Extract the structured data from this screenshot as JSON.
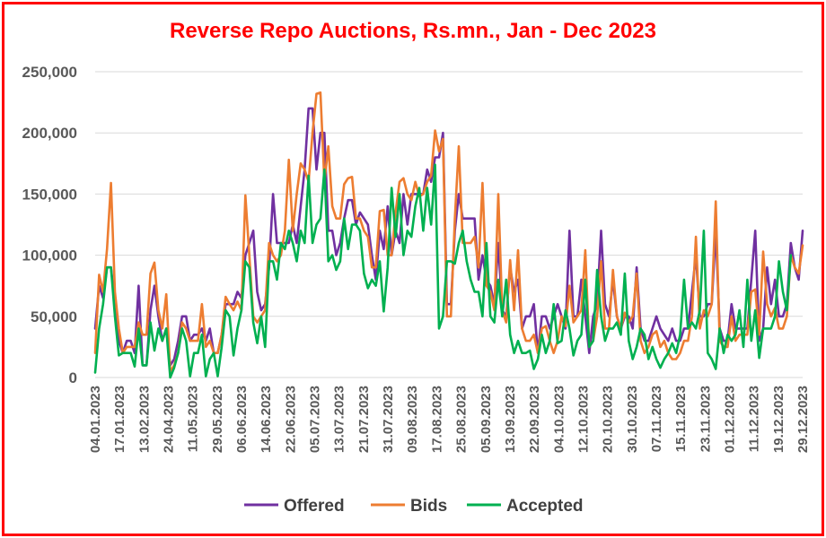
{
  "chart_data": {
    "type": "line",
    "title": "Reverse Repo Auctions, Rs.mn., Jan - Dec 2023",
    "xlabel": "",
    "ylabel": "",
    "ylim": [
      0,
      250000
    ],
    "yticks": [
      0,
      50000,
      100000,
      150000,
      200000,
      250000
    ],
    "ytick_labels": [
      "0",
      "50,000",
      "100,000",
      "150,000",
      "200,000",
      "250,000"
    ],
    "xtick_labels": [
      "04.01.2023",
      "17.01.2023",
      "13.02.2023",
      "24.04.2023",
      "11.05.2023",
      "29.05.2023",
      "06.06.2023",
      "14.06.2023",
      "22.06.2023",
      "05.07.2023",
      "13.07.2023",
      "21.07.2023",
      "31.07.2023",
      "09.08.2023",
      "17.08.2023",
      "25.08.2023",
      "05.09.2023",
      "13.09.2023",
      "22.09.2023",
      "04.10.2023",
      "12.10.2023",
      "20.10.2023",
      "30.10.2023",
      "07.11.2023",
      "15.11.2023",
      "23.11.2023",
      "01.12.2023",
      "11.12.2023",
      "19.12.2023",
      "29.12.2023"
    ],
    "legend": "bottom",
    "grid": true,
    "series": [
      {
        "name": "Offered",
        "color": "#7030a0",
        "values": [
          40000,
          75000,
          65000,
          90000,
          90000,
          60000,
          30000,
          20000,
          30000,
          30000,
          20000,
          75000,
          10000,
          10000,
          55000,
          75000,
          50000,
          30000,
          40000,
          10000,
          15000,
          30000,
          50000,
          50000,
          30000,
          35000,
          35000,
          40000,
          30000,
          40000,
          20000,
          20000,
          35000,
          60000,
          60000,
          60000,
          70000,
          65000,
          100000,
          110000,
          120000,
          70000,
          55000,
          60000,
          90000,
          150000,
          110000,
          110000,
          110000,
          110000,
          125000,
          110000,
          140000,
          170000,
          220000,
          220000,
          170000,
          200000,
          200000,
          120000,
          120000,
          100000,
          110000,
          130000,
          145000,
          145000,
          125000,
          135000,
          130000,
          125000,
          100000,
          80000,
          120000,
          105000,
          140000,
          100000,
          120000,
          110000,
          150000,
          125000,
          150000,
          150000,
          150000,
          150000,
          170000,
          160000,
          180000,
          180000,
          200000,
          60000,
          60000,
          120000,
          150000,
          130000,
          130000,
          130000,
          130000,
          80000,
          100000,
          80000,
          75000,
          60000,
          110000,
          55000,
          50000,
          90000,
          70000,
          80000,
          40000,
          50000,
          50000,
          60000,
          20000,
          50000,
          50000,
          40000,
          50000,
          60000,
          50000,
          40000,
          120000,
          50000,
          50000,
          80000,
          50000,
          20000,
          50000,
          60000,
          120000,
          60000,
          50000,
          80000,
          50000,
          40000,
          50000,
          50000,
          40000,
          90000,
          40000,
          30000,
          30000,
          40000,
          50000,
          40000,
          35000,
          30000,
          40000,
          30000,
          30000,
          40000,
          40000,
          70000,
          100000,
          50000,
          50000,
          60000,
          60000,
          120000,
          40000,
          30000,
          30000,
          60000,
          40000,
          40000,
          40000,
          40000,
          80000,
          120000,
          30000,
          40000,
          90000,
          60000,
          80000,
          50000,
          50000,
          60000,
          110000,
          90000,
          80000,
          120000
        ]
      },
      {
        "name": "Bids",
        "color": "#ed7d31",
        "values": [
          20000,
          84000,
          70000,
          105000,
          159000,
          70000,
          40000,
          20000,
          25000,
          25000,
          25000,
          45000,
          35000,
          35000,
          85000,
          94000,
          55000,
          40000,
          68000,
          5000,
          10000,
          20000,
          45000,
          40000,
          30000,
          30000,
          30000,
          60000,
          25000,
          30000,
          20000,
          20000,
          35000,
          66000,
          60000,
          55000,
          62000,
          55000,
          149000,
          100000,
          50000,
          45000,
          50000,
          55000,
          110000,
          100000,
          95000,
          100000,
          120000,
          178000,
          120000,
          150000,
          175000,
          170000,
          160000,
          200000,
          232000,
          233000,
          160000,
          189000,
          140000,
          130000,
          130000,
          158000,
          163000,
          164000,
          130000,
          130000,
          120000,
          115000,
          90000,
          90000,
          136000,
          137000,
          100000,
          100000,
          135000,
          160000,
          163000,
          150000,
          145000,
          160000,
          148000,
          150000,
          160000,
          165000,
          202000,
          185000,
          195000,
          50000,
          50000,
          130000,
          189000,
          110000,
          110000,
          110000,
          115000,
          90000,
          159000,
          75000,
          70000,
          55000,
          150000,
          55000,
          45000,
          96000,
          55000,
          104000,
          40000,
          30000,
          30000,
          35000,
          20000,
          40000,
          42000,
          30000,
          20000,
          30000,
          50000,
          42000,
          75000,
          45000,
          50000,
          55000,
          104000,
          25000,
          30000,
          50000,
          95000,
          40000,
          40000,
          88000,
          50000,
          40000,
          53000,
          45000,
          50000,
          85000,
          30000,
          20000,
          25000,
          35000,
          38000,
          25000,
          30000,
          20000,
          15000,
          15000,
          20000,
          30000,
          30000,
          50000,
          115000,
          40000,
          55000,
          50000,
          60000,
          144000,
          30000,
          25000,
          25000,
          50000,
          30000,
          35000,
          35000,
          35000,
          70000,
          72000,
          35000,
          103000,
          60000,
          50000,
          57000,
          40000,
          40000,
          50000,
          100000,
          90000,
          85000,
          108000
        ]
      },
      {
        "name": "Accepted",
        "color": "#00b050",
        "values": [
          4000,
          40000,
          60000,
          90000,
          90000,
          50000,
          18000,
          20000,
          20000,
          20000,
          9000,
          40000,
          10000,
          10000,
          45000,
          22000,
          40000,
          30000,
          40000,
          0,
          8000,
          20000,
          40000,
          30000,
          1000,
          20000,
          20000,
          35000,
          1000,
          15000,
          20000,
          1000,
          25000,
          55000,
          50000,
          18000,
          40000,
          55000,
          95000,
          90000,
          45000,
          28000,
          50000,
          25000,
          95000,
          95000,
          80000,
          110000,
          105000,
          120000,
          110000,
          95000,
          120000,
          110000,
          165000,
          110000,
          125000,
          130000,
          170000,
          95000,
          100000,
          88000,
          95000,
          130000,
          105000,
          125000,
          125000,
          120000,
          85000,
          73000,
          80000,
          75000,
          95000,
          54000,
          90000,
          155000,
          115000,
          150000,
          100000,
          120000,
          115000,
          140000,
          155000,
          120000,
          155000,
          125000,
          174000,
          40000,
          50000,
          95000,
          95000,
          93000,
          110000,
          120000,
          95000,
          80000,
          70000,
          70000,
          50000,
          110000,
          50000,
          45000,
          80000,
          50000,
          80000,
          35000,
          20000,
          30000,
          20000,
          20000,
          22000,
          7000,
          15000,
          35000,
          20000,
          30000,
          60000,
          28000,
          30000,
          55000,
          40000,
          18000,
          30000,
          35000,
          80000,
          25000,
          30000,
          88000,
          50000,
          30000,
          40000,
          40000,
          45000,
          35000,
          85000,
          30000,
          15000,
          25000,
          40000,
          35000,
          15000,
          25000,
          15000,
          8000,
          15000,
          20000,
          28000,
          20000,
          35000,
          80000,
          40000,
          45000,
          40000,
          55000,
          120000,
          20000,
          15000,
          7000,
          40000,
          20000,
          35000,
          30000,
          35000,
          55000,
          25000,
          80000,
          30000,
          55000,
          16000,
          40000,
          40000,
          40000,
          50000,
          95000,
          70000,
          55000,
          100000
        ]
      }
    ]
  }
}
